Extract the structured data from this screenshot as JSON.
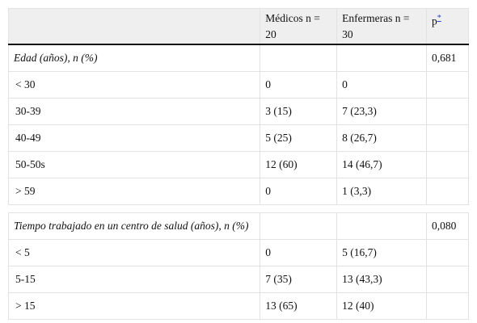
{
  "table": {
    "columns": [
      "Médicos n = 20",
      "Enfermeras n = 30",
      "p"
    ],
    "p_note": "*",
    "sections": [
      {
        "title": "Edad (años), n (%)",
        "p": "0,681",
        "rows": [
          [
            "< 30",
            "0",
            "0"
          ],
          [
            "30-39",
            "3 (15)",
            "7 (23,3)"
          ],
          [
            "40-49",
            "5 (25)",
            "8 (26,7)"
          ],
          [
            "50-50s",
            "12 (60)",
            "14 (46,7)"
          ],
          [
            "> 59",
            "0",
            "1 (3,3)"
          ]
        ]
      },
      {
        "title": "Tiempo trabajado en un centro de salud (años), n (%)",
        "p": "0,080",
        "rows": [
          [
            "< 5",
            "0",
            "5 (16,7)"
          ],
          [
            "5-15",
            "7 (35)",
            "13 (43,3)"
          ],
          [
            "> 15",
            "13 (65)",
            "12 (40)"
          ]
        ]
      }
    ]
  }
}
